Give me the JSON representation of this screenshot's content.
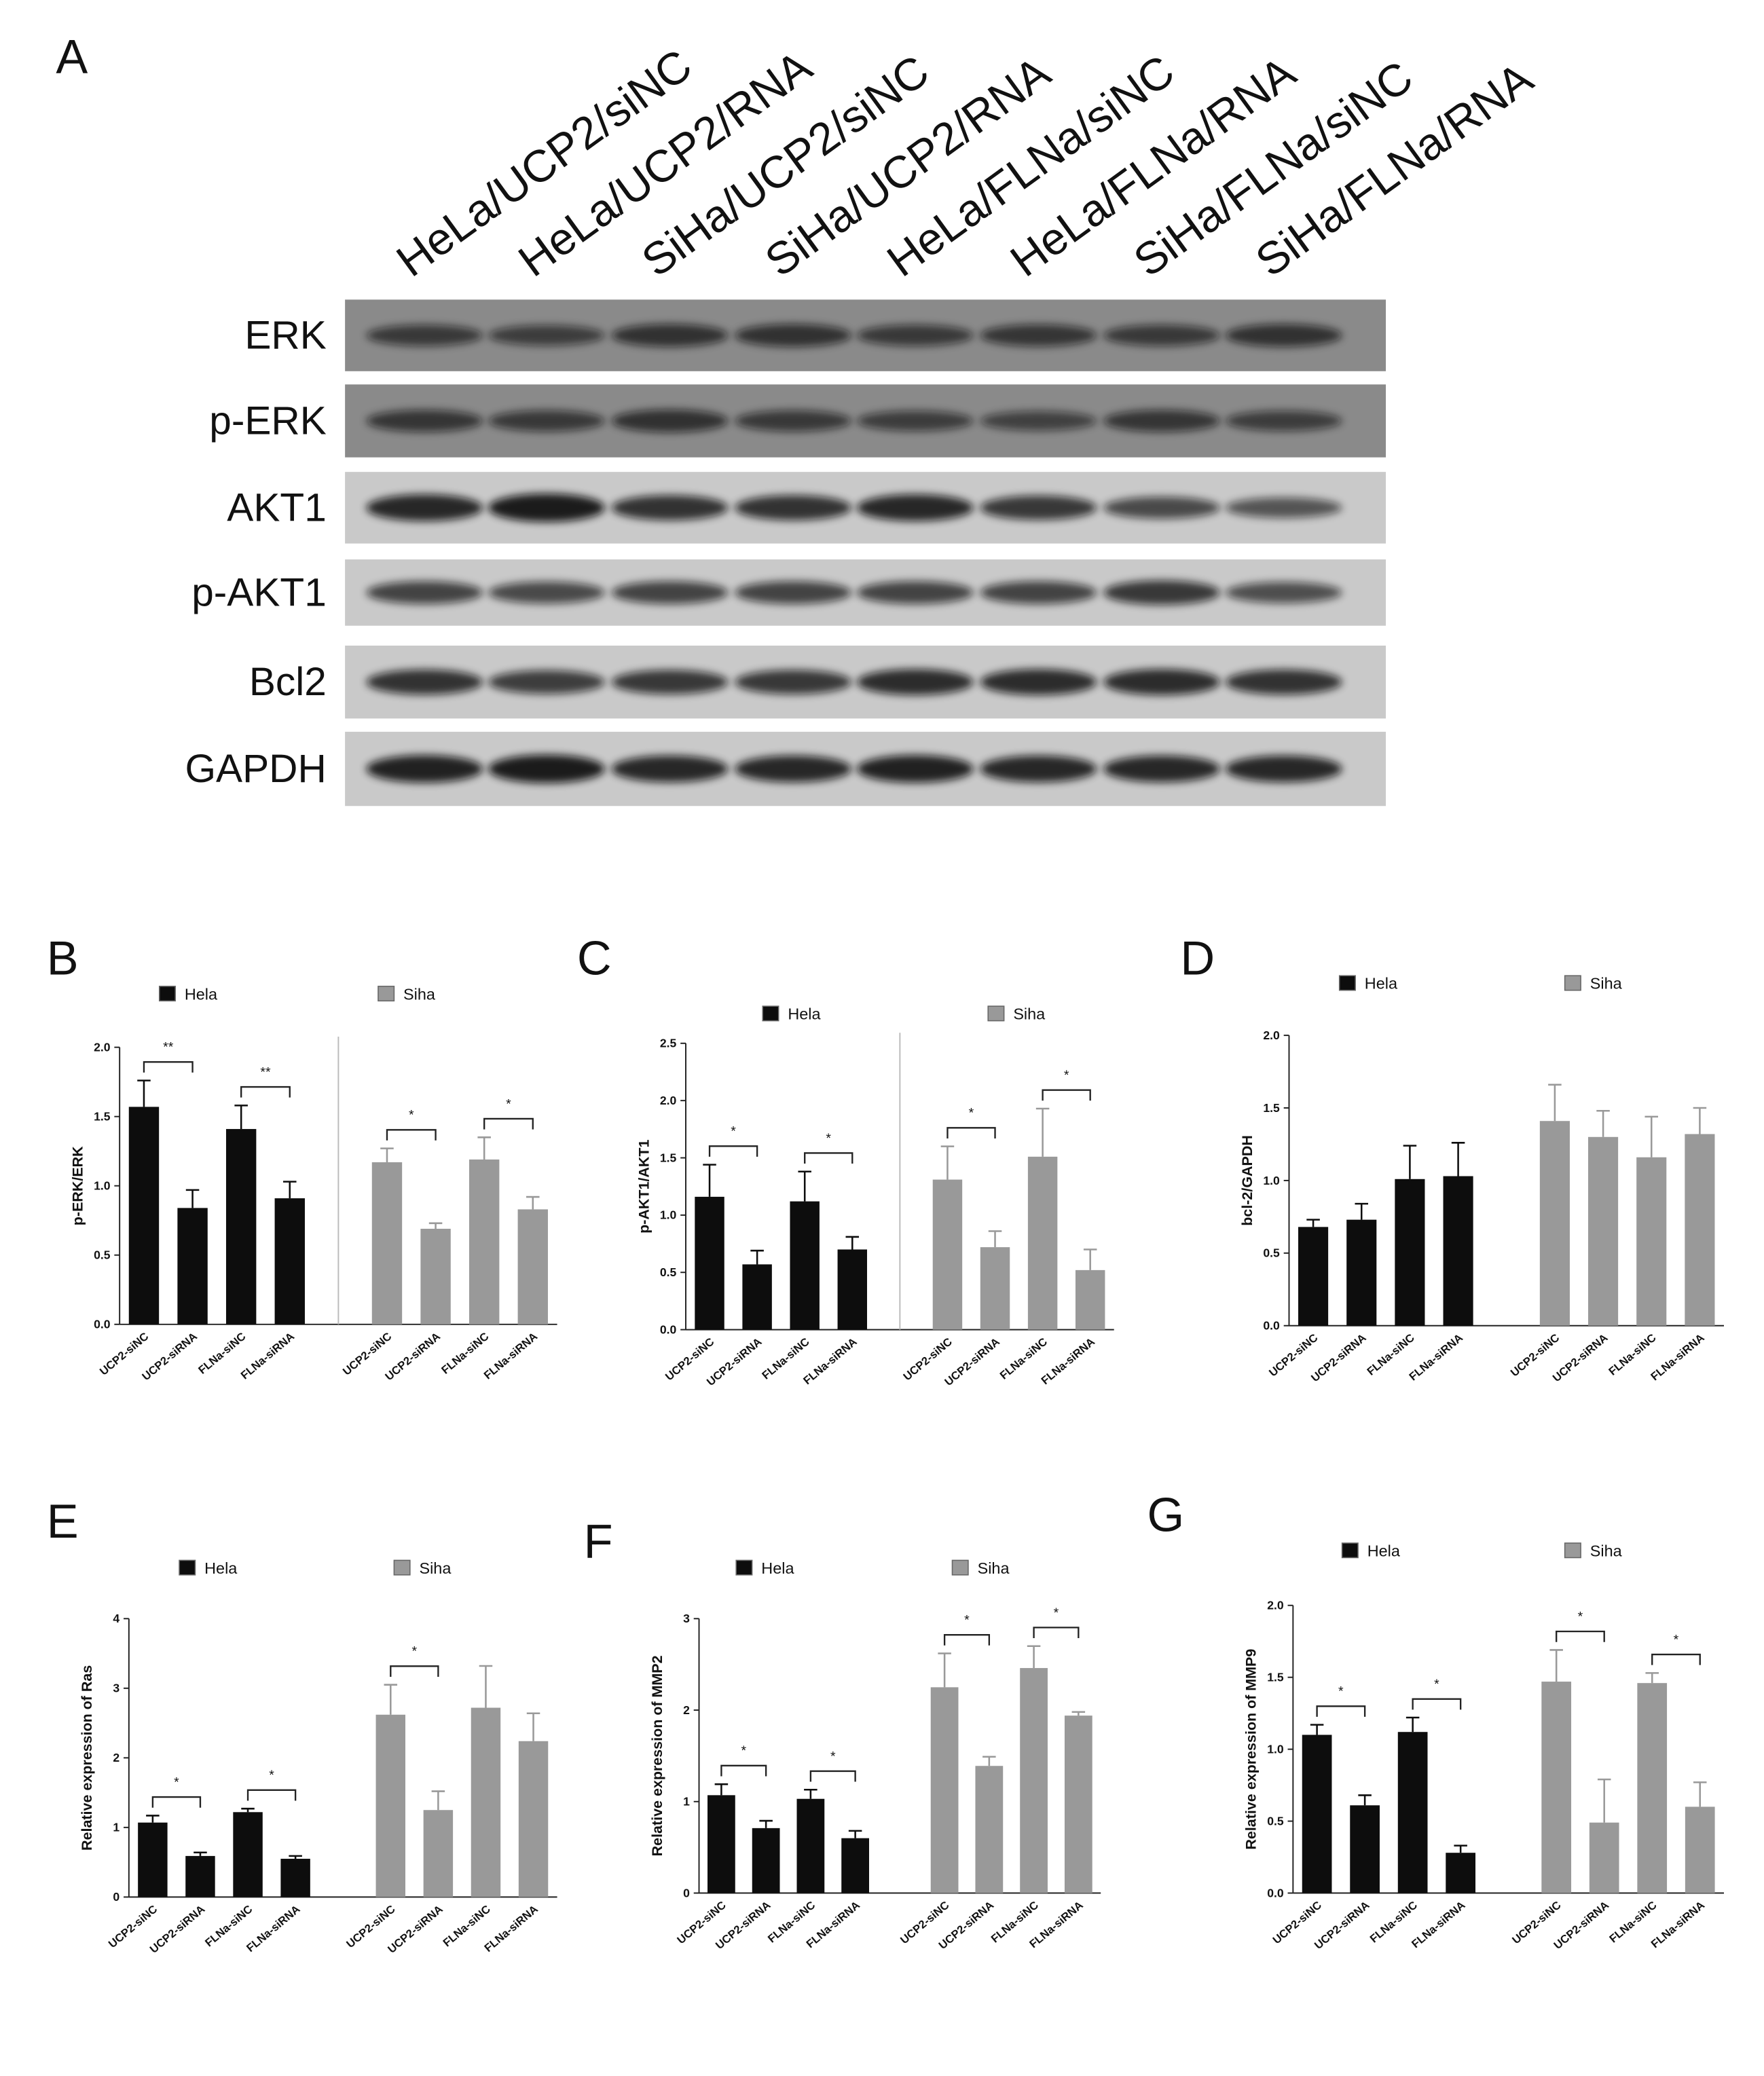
{
  "panel_a": {
    "title": "A",
    "columns": [
      "HeLa/UCP2/siNC",
      "HeLa/UCP2/RNA",
      "SiHa/UCP2/siNC",
      "SiHa/UCP2/RNA",
      "HeLa/FLNa/siNC",
      "HeLa/FLNa/RNA",
      "SiHa/FLNa/siNC",
      "SiHa/FLNa/RNA"
    ],
    "rows": [
      "ERK",
      "p-ERK",
      "AKT1",
      "p-AKT1",
      "Bcl2",
      "GAPDH"
    ]
  },
  "chart_data": [
    {
      "type": "bar",
      "panel": "B",
      "ylabel": "p-ERK/ERK",
      "divider": true,
      "categories": [
        "UCP2-siNC",
        "UCP2-siRNA",
        "FLNa-siNC",
        "FLNa-siRNA",
        "UCP2-siNC",
        "UCP2-siRNA",
        "FLNa-siNC",
        "FLNa-siRNA"
      ],
      "series": [
        {
          "name": "Hela",
          "color": "#0d0d0d",
          "values": [
            1.57,
            0.84,
            1.41,
            0.91,
            null,
            null,
            null,
            null
          ],
          "errors": [
            0.19,
            0.13,
            0.17,
            0.12,
            null,
            null,
            null,
            null
          ]
        },
        {
          "name": "Siha",
          "color": "#999999",
          "values": [
            null,
            null,
            null,
            null,
            1.17,
            0.69,
            1.19,
            0.83
          ],
          "errors": [
            null,
            null,
            null,
            null,
            0.1,
            0.04,
            0.16,
            0.09
          ]
        }
      ],
      "significance": [
        {
          "text": "**",
          "from": 0,
          "to": 1
        },
        {
          "text": "**",
          "from": 2,
          "to": 3
        },
        {
          "text": "*",
          "from": 4,
          "to": 5
        },
        {
          "text": "*",
          "from": 6,
          "to": 7
        }
      ],
      "ylim": [
        0,
        2
      ],
      "yticks": [
        {
          "value": 0,
          "label": "0.0"
        },
        {
          "value": 0.5,
          "label": "0.5"
        },
        {
          "value": 1,
          "label": "1.0"
        },
        {
          "value": 1.5,
          "label": "1.5"
        },
        {
          "value": 2,
          "label": "2.0"
        }
      ]
    },
    {
      "type": "bar",
      "panel": "C",
      "ylabel": "p-AKT1/AKT1",
      "divider": true,
      "categories": [
        "UCP2-siNC",
        "UCP2-siRNA",
        "FLNa-siNC",
        "FLNa-siRNA",
        "UCP2-siNC",
        "UCP2-siRNA",
        "FLNa-siNC",
        "FLNa-siRNA"
      ],
      "series": [
        {
          "name": "Hela",
          "color": "#0d0d0d",
          "values": [
            1.16,
            0.57,
            1.12,
            0.7,
            null,
            null,
            null,
            null
          ],
          "errors": [
            0.28,
            0.12,
            0.26,
            0.11,
            null,
            null,
            null,
            null
          ]
        },
        {
          "name": "Siha",
          "color": "#999999",
          "values": [
            null,
            null,
            null,
            null,
            1.31,
            0.72,
            1.51,
            0.52
          ],
          "errors": [
            null,
            null,
            null,
            null,
            0.29,
            0.14,
            0.42,
            0.18
          ]
        }
      ],
      "significance": [
        {
          "text": "*",
          "from": 0,
          "to": 1
        },
        {
          "text": "*",
          "from": 2,
          "to": 3
        },
        {
          "text": "*",
          "from": 4,
          "to": 5
        },
        {
          "text": "*",
          "from": 6,
          "to": 7
        }
      ],
      "ylim": [
        0,
        2.5
      ],
      "yticks": [
        {
          "value": 0,
          "label": "0.0"
        },
        {
          "value": 0.5,
          "label": "0.5"
        },
        {
          "value": 1,
          "label": "1.0"
        },
        {
          "value": 1.5,
          "label": "1.5"
        },
        {
          "value": 2,
          "label": "2.0"
        },
        {
          "value": 2.5,
          "label": "2.5"
        }
      ]
    },
    {
      "type": "bar",
      "panel": "D",
      "ylabel": "bcl-2/GAPDH",
      "divider": false,
      "categories": [
        "UCP2-siNC",
        "UCP2-siRNA",
        "FLNa-siNC",
        "FLNa-siRNA",
        "UCP2-siNC",
        "UCP2-siRNA",
        "FLNa-siNC",
        "FLNa-siRNA"
      ],
      "series": [
        {
          "name": "Hela",
          "color": "#0d0d0d",
          "values": [
            0.68,
            0.73,
            1.01,
            1.03,
            null,
            null,
            null,
            null
          ],
          "errors": [
            0.05,
            0.11,
            0.23,
            0.23,
            null,
            null,
            null,
            null
          ]
        },
        {
          "name": "Siha",
          "color": "#999999",
          "values": [
            null,
            null,
            null,
            null,
            1.41,
            1.3,
            1.16,
            1.32
          ],
          "errors": [
            null,
            null,
            null,
            null,
            0.25,
            0.18,
            0.28,
            0.18
          ]
        }
      ],
      "significance": [],
      "ylim": [
        0,
        2
      ],
      "yticks": [
        {
          "value": 0,
          "label": "0.0"
        },
        {
          "value": 0.5,
          "label": "0.5"
        },
        {
          "value": 1,
          "label": "1.0"
        },
        {
          "value": 1.5,
          "label": "1.5"
        },
        {
          "value": 2,
          "label": "2.0"
        }
      ]
    },
    {
      "type": "bar",
      "panel": "E",
      "ylabel": "Relative expression of Ras",
      "divider": false,
      "categories": [
        "UCP2-siNC",
        "UCP2-siRNA",
        "FLNa-siNC",
        "FLNa-siRNA",
        "UCP2-siNC",
        "UCP2-siRNA",
        "FLNa-siNC",
        "FLNa-siRNA"
      ],
      "series": [
        {
          "name": "Hela",
          "color": "#0d0d0d",
          "values": [
            1.07,
            0.59,
            1.22,
            0.55,
            null,
            null,
            null,
            null
          ],
          "errors": [
            0.1,
            0.05,
            0.05,
            0.04,
            null,
            null,
            null,
            null
          ]
        },
        {
          "name": "Siha",
          "color": "#999999",
          "values": [
            null,
            null,
            null,
            null,
            2.62,
            1.25,
            2.72,
            2.24
          ],
          "errors": [
            null,
            null,
            null,
            null,
            0.43,
            0.27,
            0.6,
            0.4
          ]
        }
      ],
      "significance": [
        {
          "text": "*",
          "from": 0,
          "to": 1
        },
        {
          "text": "*",
          "from": 2,
          "to": 3
        },
        {
          "text": "*",
          "from": 4,
          "to": 5
        }
      ],
      "ylim": [
        0,
        4
      ],
      "yticks": [
        0,
        1,
        2,
        3,
        4
      ]
    },
    {
      "type": "bar",
      "panel": "F",
      "ylabel": "Relative expression of MMP2",
      "divider": false,
      "categories": [
        "UCP2-siNC",
        "UCP2-siRNA",
        "FLNa-siNC",
        "FLNa-siRNA",
        "UCP2-siNC",
        "UCP2-siRNA",
        "FLNa-siNC",
        "FLNa-siRNA"
      ],
      "series": [
        {
          "name": "Hela",
          "color": "#0d0d0d",
          "values": [
            1.07,
            0.71,
            1.03,
            0.6,
            null,
            null,
            null,
            null
          ],
          "errors": [
            0.12,
            0.08,
            0.1,
            0.08,
            null,
            null,
            null,
            null
          ]
        },
        {
          "name": "Siha",
          "color": "#999999",
          "values": [
            null,
            null,
            null,
            null,
            2.25,
            1.39,
            2.46,
            1.94
          ],
          "errors": [
            null,
            null,
            null,
            null,
            0.37,
            0.1,
            0.24,
            0.04
          ]
        }
      ],
      "significance": [
        {
          "text": "*",
          "from": 0,
          "to": 1
        },
        {
          "text": "*",
          "from": 2,
          "to": 3
        },
        {
          "text": "*",
          "from": 4,
          "to": 5
        },
        {
          "text": "*",
          "from": 6,
          "to": 7
        }
      ],
      "ylim": [
        0,
        3
      ],
      "yticks": [
        0,
        1,
        2,
        3
      ]
    },
    {
      "type": "bar",
      "panel": "G",
      "ylabel": "Relative expression of MMP9",
      "divider": false,
      "categories": [
        "UCP2-siNC",
        "UCP2-siRNA",
        "FLNa-siNC",
        "FLNa-siRNA",
        "UCP2-siNC",
        "UCP2-siRNA",
        "FLNa-siNC",
        "FLNa-siRNA"
      ],
      "series": [
        {
          "name": "Hela",
          "color": "#0d0d0d",
          "values": [
            1.1,
            0.61,
            1.12,
            0.28,
            null,
            null,
            null,
            null
          ],
          "errors": [
            0.07,
            0.07,
            0.1,
            0.05,
            null,
            null,
            null,
            null
          ]
        },
        {
          "name": "Siha",
          "color": "#999999",
          "values": [
            null,
            null,
            null,
            null,
            1.47,
            0.49,
            1.46,
            0.6
          ],
          "errors": [
            null,
            null,
            null,
            null,
            0.22,
            0.3,
            0.07,
            0.17
          ]
        }
      ],
      "significance": [
        {
          "text": "*",
          "from": 0,
          "to": 1
        },
        {
          "text": "*",
          "from": 2,
          "to": 3
        },
        {
          "text": "*",
          "from": 4,
          "to": 5
        },
        {
          "text": "*",
          "from": 6,
          "to": 7
        }
      ],
      "ylim": [
        0,
        2
      ],
      "yticks": [
        {
          "value": 0,
          "label": "0.0"
        },
        {
          "value": 0.5,
          "label": "0.5"
        },
        {
          "value": 1,
          "label": "1.0"
        },
        {
          "value": 1.5,
          "label": "1.5"
        },
        {
          "value": 2,
          "label": "2.0"
        }
      ]
    }
  ]
}
